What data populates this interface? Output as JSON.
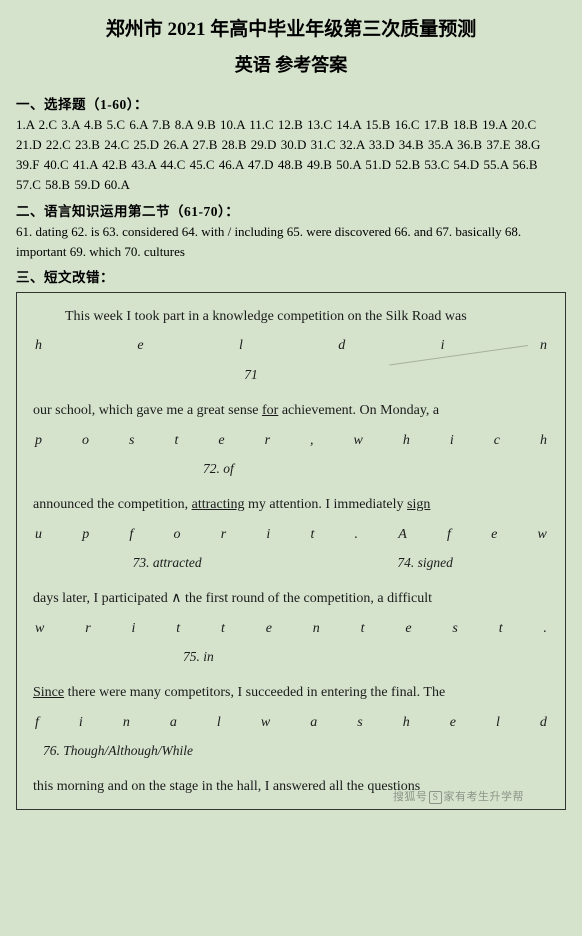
{
  "title_line1": "郑州市 2021 年高中毕业年级第三次质量预测",
  "title_line2": "英语  参考答案",
  "section1": {
    "heading": "一、选择题（1-60）：",
    "text": "1.A 2.C 3.A 4.B 5.C 6.A 7.B 8.A 9.B 10.A 11.C 12.B 13.C 14.A 15.B 16.C 17.B 18.B 19.A 20.C 21.D 22.C 23.B 24.C 25.D 26.A 27.B 28.B 29.D 30.D 31.C 32.A 33.D 34.B 35.A 36.B 37.E 38.G 39.F 40.C 41.A 42.B 43.A 44.C 45.C 46.A 47.D 48.B 49.B 50.A 51.D 52.B 53.C 54.D 55.A 56.B 57.C 58.B 59.D 60.A"
  },
  "section2": {
    "heading": "二、语言知识运用第二节（61-70）：",
    "text": "61. dating 62. is 63. considered 64. with / including 65. were discovered 66. and 67. basically 68. important 69. which 70. cultures"
  },
  "section3": {
    "heading": "三、短文改错：",
    "essay": {
      "l1a": "This week I took part in a knowledge competition on the Silk Road was",
      "l1b_letters": [
        "h",
        "e",
        "l",
        "d",
        "i",
        "n"
      ],
      "c1": "71",
      "l2": "our school, which gave me a great sense ",
      "l2_u": "for",
      "l2_end": " achievement. On Monday, a",
      "l2b_letters": [
        "p",
        "o",
        "s",
        "t",
        "e",
        "r",
        ",",
        "w",
        "h",
        "i",
        "c",
        "h"
      ],
      "c2": "72. of",
      "l3a": "announced the competition, ",
      "l3_u": "attracting",
      "l3b": " my attention. I immediately ",
      "l3_u2": "sign",
      "l3c_letters": [
        "u",
        "p",
        "f",
        "o",
        "r",
        "i",
        "t",
        ".",
        "A",
        "f",
        "e",
        "w"
      ],
      "c3a": "73. attracted",
      "c3b": "74. signed",
      "l4a": "days later, I participated ",
      "caret": "∧",
      "l4b": " the first round of the competition, a difficult",
      "l4c_letters": [
        "w",
        "r",
        "i",
        "t",
        "t",
        "e",
        "n",
        "t",
        "e",
        "s",
        "t",
        "."
      ],
      "c4": "75. in",
      "l5_u": "Since",
      "l5": " there were many competitors, I succeeded in entering the final. The",
      "l5b_letters": [
        "f",
        "i",
        "n",
        "a",
        "l",
        "w",
        "a",
        "s",
        "h",
        "e",
        "l",
        "d"
      ],
      "c5": "76. Though/Although/While",
      "l6": "this morning and on the stage in the hall, I answered all the questions"
    }
  },
  "watermark": {
    "left": "搜狐号",
    "right": "家有考生升学帮"
  }
}
